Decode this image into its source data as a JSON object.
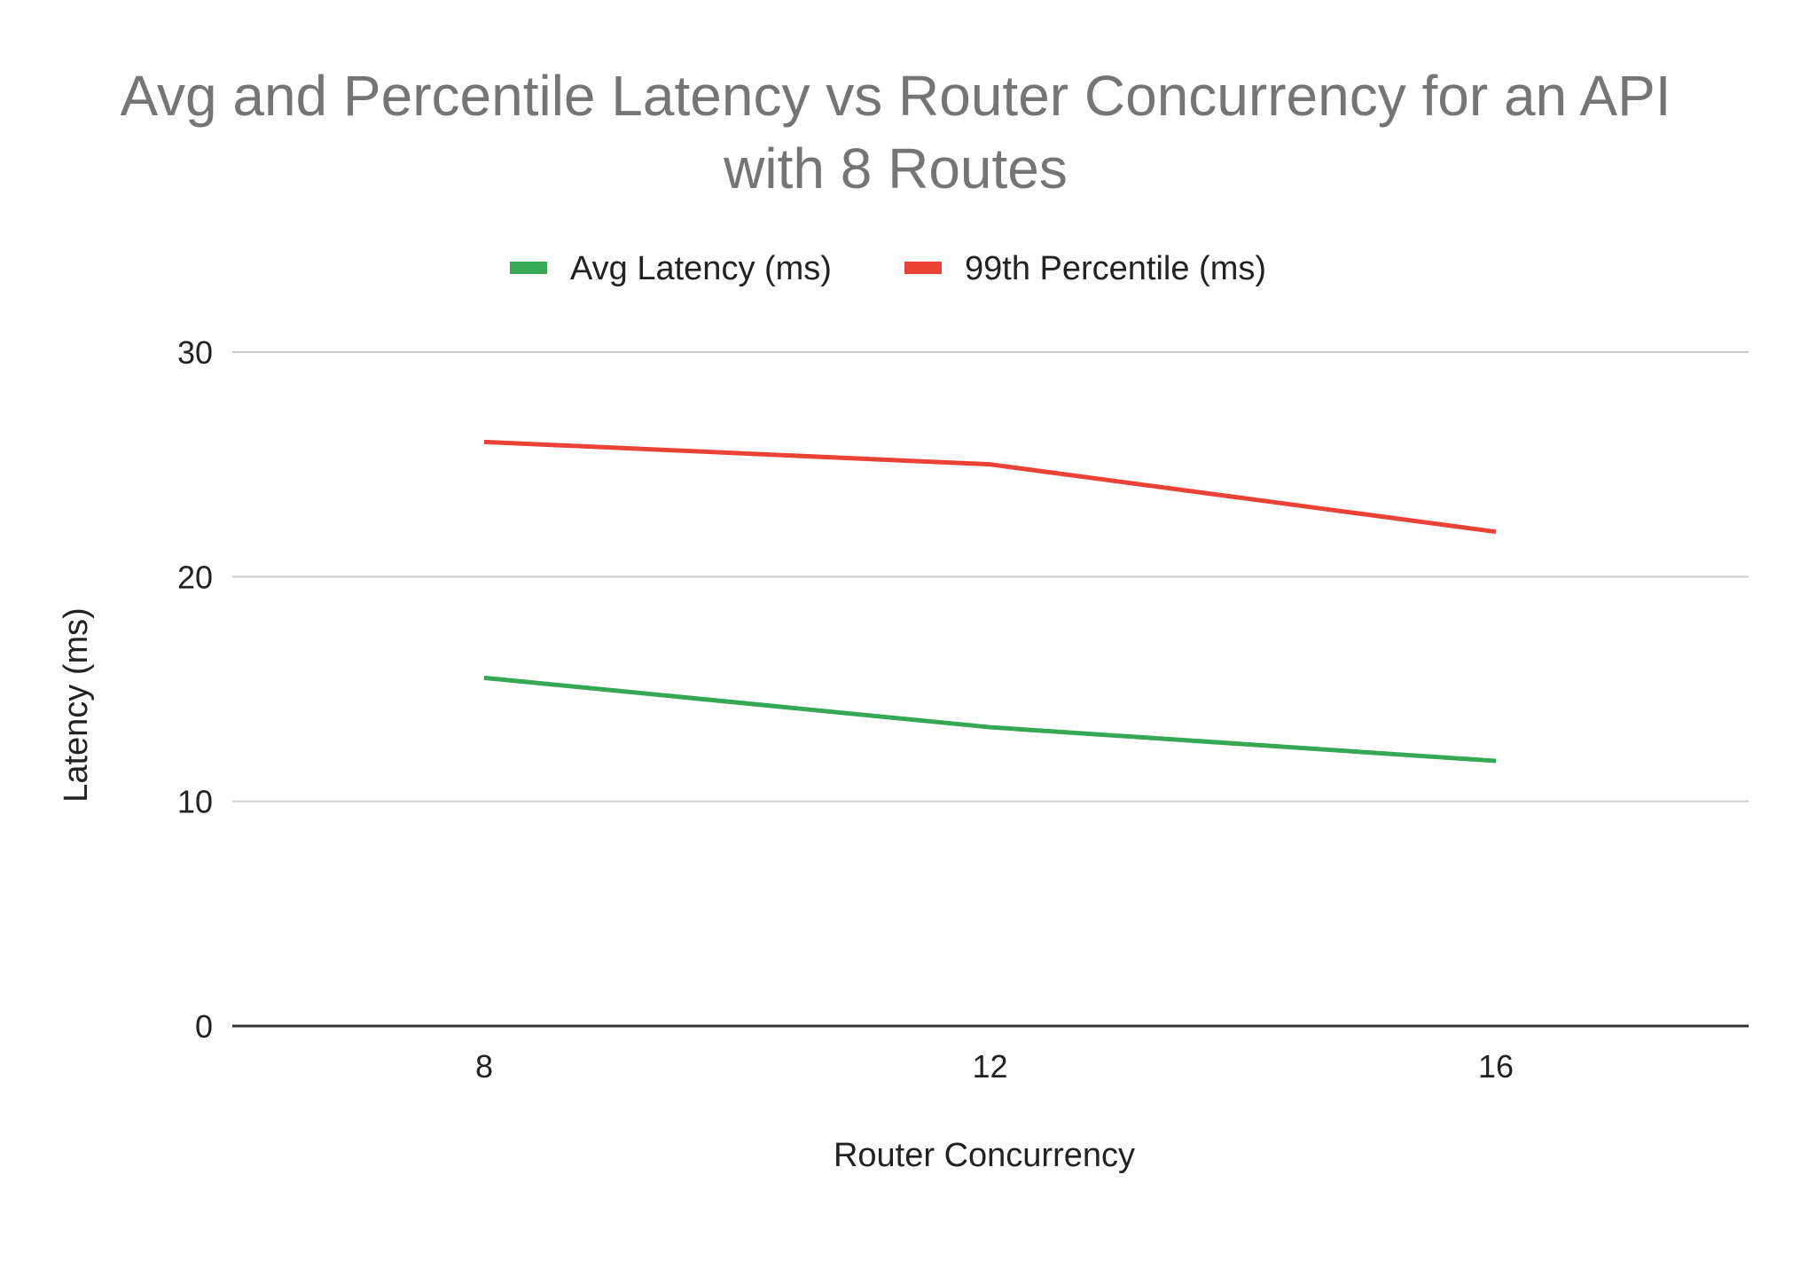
{
  "chart_data": {
    "type": "line",
    "title": "Avg and Percentile Latency vs Router Concurrency for an API with 8 Routes",
    "title_lines": [
      "Avg and Percentile Latency vs Router Concurrency for an API",
      "with 8 Routes"
    ],
    "xlabel": "Router Concurrency",
    "ylabel": "Latency (ms)",
    "x": [
      8,
      12,
      16
    ],
    "x_tick_labels": [
      "8",
      "12",
      "16"
    ],
    "ylim": [
      0,
      30
    ],
    "y_ticks": [
      0,
      10,
      20,
      30
    ],
    "y_tick_labels": [
      "0",
      "10",
      "20",
      "30"
    ],
    "grid": true,
    "legend_position": "top",
    "series": [
      {
        "name": "Avg Latency (ms)",
        "color": "#34a853",
        "values": [
          15.5,
          13.3,
          11.8
        ]
      },
      {
        "name": "99th Percentile (ms)",
        "color": "#ea4335",
        "values": [
          26.0,
          25.0,
          22.0
        ]
      }
    ]
  },
  "colors": {
    "gridline": "#cccccc",
    "baseline": "#333333"
  }
}
